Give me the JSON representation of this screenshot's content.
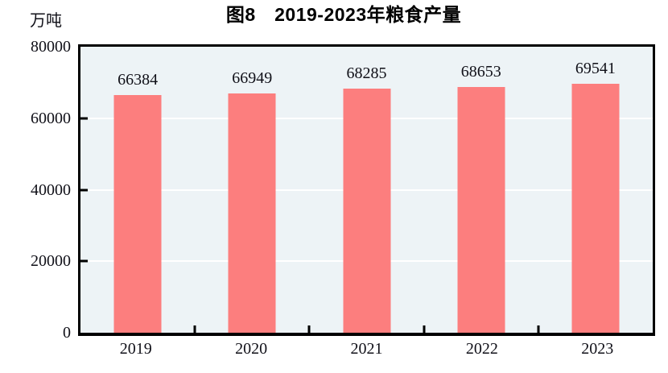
{
  "header": {
    "title": "图8　2019-2023年粮食产量",
    "unit_label": "万吨"
  },
  "chart_data": {
    "type": "bar",
    "title": "图8　2019-2023年粮食产量",
    "xlabel": "",
    "ylabel": "万吨",
    "categories": [
      "2019",
      "2020",
      "2021",
      "2022",
      "2023"
    ],
    "values": [
      66384,
      66949,
      68285,
      68653,
      69541
    ],
    "value_labels": [
      "66384",
      "66949",
      "68285",
      "68653",
      "69541"
    ],
    "ylim": [
      0,
      80000
    ],
    "yticks": [
      0,
      20000,
      40000,
      60000,
      80000
    ],
    "ytick_labels": [
      "0",
      "20000",
      "40000",
      "60000",
      "80000"
    ],
    "grid": true,
    "legend_position": "none",
    "colors": {
      "bar": "#fc7e7e",
      "plot_background": "#edf3f6",
      "gridline": "#ffffff",
      "frame": "#000000",
      "text": "#101018"
    }
  }
}
